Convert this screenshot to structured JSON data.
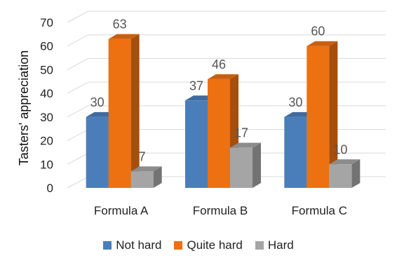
{
  "chart_data": {
    "type": "bar",
    "style": "3d-clustered-column",
    "ylabel": "Tasters' appreciation",
    "xlabel": "",
    "title": "",
    "categories": [
      "Formula A",
      "Formula B",
      "Formula C"
    ],
    "ylim": [
      0,
      70
    ],
    "yticks": [
      0,
      10,
      20,
      30,
      40,
      50,
      60,
      70
    ],
    "grid": true,
    "legend_position": "bottom",
    "series": [
      {
        "name": "Not hard",
        "values": [
          30,
          37,
          30
        ],
        "color": "#4a7ebb"
      },
      {
        "name": "Quite hard",
        "values": [
          63,
          46,
          60
        ],
        "color": "#ed7011"
      },
      {
        "name": "Hard",
        "values": [
          7,
          17,
          10
        ],
        "color": "#a5a5a5"
      }
    ]
  }
}
